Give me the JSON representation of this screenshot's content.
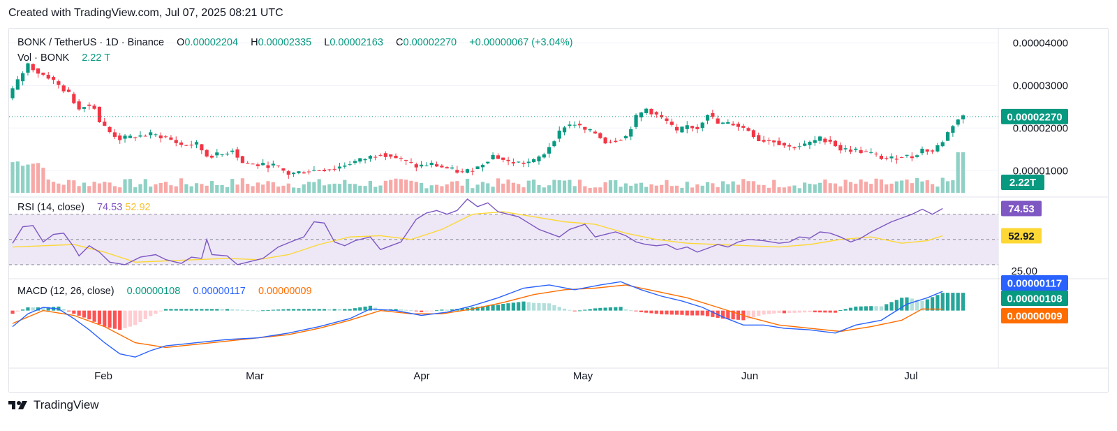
{
  "header": {
    "text": "Created with TradingView.com, Jul 07, 2025 08:21 UTC"
  },
  "legend": {
    "symbol": "BONK / TetherUS · 1D · Binance",
    "o_label": "O",
    "o_value": "0.00002204",
    "h_label": "H",
    "h_value": "0.00002335",
    "l_label": "L",
    "l_value": "0.00002163",
    "c_label": "C",
    "c_value": "0.00002270",
    "change": "+0.00000067 (+3.04%)",
    "vol_label": "Vol · BONK",
    "vol_value": "2.22 T"
  },
  "rsi_legend": {
    "label": "RSI (14, close)",
    "rsi": "74.53",
    "ma": "52.92"
  },
  "macd_legend": {
    "label": "MACD (12, 26, close)",
    "hist": "0.00000108",
    "macd": "0.00000117",
    "signal": "0.00000009"
  },
  "footer": {
    "brand": "TradingView",
    "logo_icon": "tradingview-logo-icon"
  },
  "colors": {
    "up": "#089981",
    "down": "#f23645",
    "vol_up": "#8fd1c5",
    "vol_down": "#f7a9a7",
    "rsi_line": "#7e57c2",
    "rsi_ma": "#fdd835",
    "macd_line": "#2962ff",
    "signal_line": "#ff6d00",
    "rsi_band": "#ede7f6"
  },
  "chart_data": [
    {
      "type": "candlestick",
      "title": "BONK / TetherUS · 1D · Binance",
      "x_labels": [
        "Feb",
        "Mar",
        "Apr",
        "May",
        "Jun",
        "Jul"
      ],
      "y_ticks": [
        "0.00004000",
        "0.00003000",
        "0.00002000",
        "0.00001000"
      ],
      "ylim": [
        4.8e-06,
        4.35e-05
      ],
      "last_price": "0.00002270",
      "last_volume": "2.22T",
      "price_path": [
        [
          0,
          2.7e-05
        ],
        [
          4,
          3.1e-05
        ],
        [
          8,
          3.5e-05
        ],
        [
          12,
          3.3e-05
        ],
        [
          16,
          3.2e-05
        ],
        [
          20,
          3e-05
        ],
        [
          24,
          2.8e-05
        ],
        [
          28,
          2.45e-05
        ],
        [
          30,
          2.55e-05
        ],
        [
          34,
          2.5e-05
        ],
        [
          36,
          2.15e-05
        ],
        [
          40,
          1.9e-05
        ],
        [
          44,
          1.75e-05
        ],
        [
          50,
          1.8e-05
        ],
        [
          56,
          1.85e-05
        ],
        [
          62,
          1.78e-05
        ],
        [
          68,
          1.6e-05
        ],
        [
          74,
          1.62e-05
        ],
        [
          78,
          1.35e-05
        ],
        [
          84,
          1.38e-05
        ],
        [
          88,
          1.5e-05
        ],
        [
          92,
          1.18e-05
        ],
        [
          98,
          1.13e-05
        ],
        [
          104,
          1.12e-05
        ],
        [
          110,
          9.2e-06
        ],
        [
          116,
          9.8e-06
        ],
        [
          122,
          1.02e-05
        ],
        [
          128,
          1.05e-05
        ],
        [
          134,
          1.18e-05
        ],
        [
          140,
          1.28e-05
        ],
        [
          146,
          1.41e-05
        ],
        [
          150,
          1.35e-05
        ],
        [
          156,
          1.2e-05
        ],
        [
          160,
          1.1e-05
        ],
        [
          166,
          1.15e-05
        ],
        [
          172,
          1.05e-05
        ],
        [
          178,
          9.5e-06
        ],
        [
          184,
          1.08e-05
        ],
        [
          190,
          1.36e-05
        ],
        [
          196,
          1.2e-05
        ],
        [
          202,
          1.18e-05
        ],
        [
          206,
          1.22e-05
        ],
        [
          210,
          1.4e-05
        ],
        [
          214,
          1.75e-05
        ],
        [
          218,
          2.05e-05
        ],
        [
          222,
          2.1e-05
        ],
        [
          226,
          1.95e-05
        ],
        [
          230,
          1.88e-05
        ],
        [
          234,
          1.68e-05
        ],
        [
          238,
          1.72e-05
        ],
        [
          242,
          1.8e-05
        ],
        [
          246,
          2.25e-05
        ],
        [
          250,
          2.45e-05
        ],
        [
          254,
          2.3e-05
        ],
        [
          258,
          2.15e-05
        ],
        [
          262,
          1.9e-05
        ],
        [
          266,
          2.05e-05
        ],
        [
          270,
          2e-05
        ],
        [
          274,
          2.35e-05
        ],
        [
          278,
          2.1e-05
        ],
        [
          284,
          2.1e-05
        ],
        [
          290,
          1.95e-05
        ],
        [
          294,
          1.72e-05
        ],
        [
          300,
          1.7e-05
        ],
        [
          306,
          1.55e-05
        ],
        [
          312,
          1.6e-05
        ],
        [
          318,
          1.75e-05
        ],
        [
          322,
          1.7e-05
        ],
        [
          326,
          1.5e-05
        ],
        [
          332,
          1.48e-05
        ],
        [
          338,
          1.4e-05
        ],
        [
          342,
          1.3e-05
        ],
        [
          346,
          1.28e-05
        ],
        [
          350,
          1.35e-05
        ],
        [
          354,
          1.32e-05
        ],
        [
          358,
          1.5e-05
        ],
        [
          362,
          1.45e-05
        ],
        [
          366,
          1.7e-05
        ],
        [
          370,
          2.08e-05
        ],
        [
          373,
          2.27e-05
        ]
      ]
    },
    {
      "type": "line",
      "title": "RSI (14, close)",
      "y_ticks": [
        "25.00"
      ],
      "ylim": [
        20,
        82
      ],
      "bands": [
        70,
        50,
        30
      ],
      "rsi_path": [
        [
          0,
          47
        ],
        [
          4,
          60
        ],
        [
          8,
          61
        ],
        [
          12,
          48
        ],
        [
          16,
          54
        ],
        [
          20,
          55
        ],
        [
          24,
          44
        ],
        [
          26,
          37
        ],
        [
          30,
          45
        ],
        [
          34,
          40
        ],
        [
          38,
          32
        ],
        [
          44,
          30
        ],
        [
          50,
          36
        ],
        [
          56,
          38
        ],
        [
          60,
          34
        ],
        [
          66,
          31
        ],
        [
          70,
          36
        ],
        [
          74,
          35
        ],
        [
          76,
          50
        ],
        [
          78,
          38
        ],
        [
          84,
          37
        ],
        [
          88,
          30
        ],
        [
          92,
          32
        ],
        [
          98,
          35
        ],
        [
          104,
          44
        ],
        [
          110,
          49
        ],
        [
          114,
          52
        ],
        [
          118,
          64
        ],
        [
          122,
          63
        ],
        [
          126,
          48
        ],
        [
          130,
          45
        ],
        [
          134,
          49
        ],
        [
          140,
          52
        ],
        [
          144,
          42
        ],
        [
          148,
          45
        ],
        [
          152,
          48
        ],
        [
          158,
          66
        ],
        [
          162,
          71
        ],
        [
          166,
          73
        ],
        [
          170,
          70
        ],
        [
          174,
          73
        ],
        [
          178,
          82
        ],
        [
          182,
          76
        ],
        [
          186,
          79
        ],
        [
          190,
          72
        ],
        [
          194,
          70
        ],
        [
          198,
          68
        ],
        [
          202,
          63
        ],
        [
          206,
          58
        ],
        [
          210,
          55
        ],
        [
          214,
          52
        ],
        [
          218,
          58
        ],
        [
          224,
          62
        ],
        [
          228,
          52
        ],
        [
          232,
          54
        ],
        [
          236,
          56
        ],
        [
          240,
          53
        ],
        [
          244,
          48
        ],
        [
          248,
          46
        ],
        [
          252,
          45
        ],
        [
          256,
          46
        ],
        [
          260,
          42
        ],
        [
          264,
          44
        ],
        [
          268,
          40
        ],
        [
          272,
          43
        ],
        [
          276,
          46
        ],
        [
          280,
          44
        ],
        [
          284,
          48
        ],
        [
          288,
          50
        ],
        [
          294,
          49
        ],
        [
          300,
          47
        ],
        [
          304,
          48
        ],
        [
          308,
          52
        ],
        [
          312,
          51
        ],
        [
          316,
          56
        ],
        [
          320,
          55
        ],
        [
          324,
          52
        ],
        [
          328,
          48
        ],
        [
          332,
          51
        ],
        [
          336,
          56
        ],
        [
          340,
          60
        ],
        [
          344,
          64
        ],
        [
          348,
          67
        ],
        [
          352,
          70
        ],
        [
          356,
          74
        ],
        [
          360,
          70
        ],
        [
          364,
          74.53
        ]
      ],
      "ma_path": [
        [
          0,
          44
        ],
        [
          12,
          45
        ],
        [
          24,
          46
        ],
        [
          36,
          40
        ],
        [
          48,
          32
        ],
        [
          60,
          33
        ],
        [
          72,
          34
        ],
        [
          84,
          35
        ],
        [
          96,
          34
        ],
        [
          108,
          38
        ],
        [
          120,
          46
        ],
        [
          132,
          52
        ],
        [
          144,
          53
        ],
        [
          156,
          50
        ],
        [
          168,
          58
        ],
        [
          180,
          70
        ],
        [
          192,
          72
        ],
        [
          204,
          68
        ],
        [
          216,
          64
        ],
        [
          228,
          62
        ],
        [
          240,
          55
        ],
        [
          252,
          50
        ],
        [
          264,
          47
        ],
        [
          276,
          46
        ],
        [
          288,
          45
        ],
        [
          300,
          44
        ],
        [
          312,
          46
        ],
        [
          324,
          50
        ],
        [
          336,
          52
        ],
        [
          348,
          47
        ],
        [
          358,
          49
        ],
        [
          364,
          52.92
        ]
      ]
    },
    {
      "type": "bar",
      "title": "MACD (12, 26, close)",
      "y_ticks": [
        "0.00000117",
        "0.00000108",
        "0.00000009"
      ],
      "ylim": [
        -3.5e-06,
        1.9e-06
      ],
      "macd_path": [
        [
          0,
          -1e-06
        ],
        [
          6,
          -2e-07
        ],
        [
          12,
          2e-07
        ],
        [
          18,
          1e-07
        ],
        [
          24,
          -5e-07
        ],
        [
          30,
          -1.2e-06
        ],
        [
          36,
          -2e-06
        ],
        [
          42,
          -2.7e-06
        ],
        [
          48,
          -2.9e-06
        ],
        [
          54,
          -2.5e-06
        ],
        [
          60,
          -2.2e-06
        ],
        [
          72,
          -2e-06
        ],
        [
          84,
          -1.8e-06
        ],
        [
          96,
          -1.7e-06
        ],
        [
          108,
          -1.4e-06
        ],
        [
          120,
          -1e-06
        ],
        [
          132,
          -5e-07
        ],
        [
          140,
          1e-07
        ],
        [
          150,
          0.0
        ],
        [
          160,
          -3e-07
        ],
        [
          170,
          -1e-07
        ],
        [
          180,
          3e-07
        ],
        [
          190,
          8e-07
        ],
        [
          200,
          1.4e-06
        ],
        [
          210,
          1.6e-06
        ],
        [
          220,
          1.3e-06
        ],
        [
          230,
          1.6e-06
        ],
        [
          238,
          1.8e-06
        ],
        [
          246,
          1.3e-06
        ],
        [
          254,
          9e-07
        ],
        [
          262,
          6e-07
        ],
        [
          270,
          2e-07
        ],
        [
          278,
          -4e-07
        ],
        [
          286,
          -9e-07
        ],
        [
          294,
          -9e-07
        ],
        [
          302,
          -1.1e-06
        ],
        [
          312,
          -1.2e-06
        ],
        [
          322,
          -1.4e-06
        ],
        [
          330,
          -9e-07
        ],
        [
          340,
          -6e-07
        ],
        [
          350,
          4e-07
        ],
        [
          358,
          8e-07
        ],
        [
          364,
          1.2e-06
        ]
      ],
      "signal_path": [
        [
          0,
          -8e-07
        ],
        [
          12,
          0.0
        ],
        [
          24,
          -3e-07
        ],
        [
          36,
          -1e-06
        ],
        [
          48,
          -2e-06
        ],
        [
          60,
          -2.3e-06
        ],
        [
          72,
          -2.1e-06
        ],
        [
          84,
          -1.9e-06
        ],
        [
          96,
          -1.7e-06
        ],
        [
          108,
          -1.5e-06
        ],
        [
          120,
          -1.1e-06
        ],
        [
          132,
          -6e-07
        ],
        [
          144,
          0.0
        ],
        [
          156,
          -2e-07
        ],
        [
          168,
          -2e-07
        ],
        [
          180,
          1e-07
        ],
        [
          192,
          5e-07
        ],
        [
          204,
          1e-06
        ],
        [
          216,
          1.3e-06
        ],
        [
          228,
          1.4e-06
        ],
        [
          240,
          1.6e-06
        ],
        [
          252,
          1.2e-06
        ],
        [
          264,
          8e-07
        ],
        [
          276,
          2e-07
        ],
        [
          288,
          -4e-07
        ],
        [
          300,
          -9e-07
        ],
        [
          312,
          -1.1e-06
        ],
        [
          324,
          -1.3e-06
        ],
        [
          336,
          -1e-06
        ],
        [
          348,
          -6e-07
        ],
        [
          356,
          1e-07
        ],
        [
          364,
          9e-08
        ]
      ]
    }
  ]
}
